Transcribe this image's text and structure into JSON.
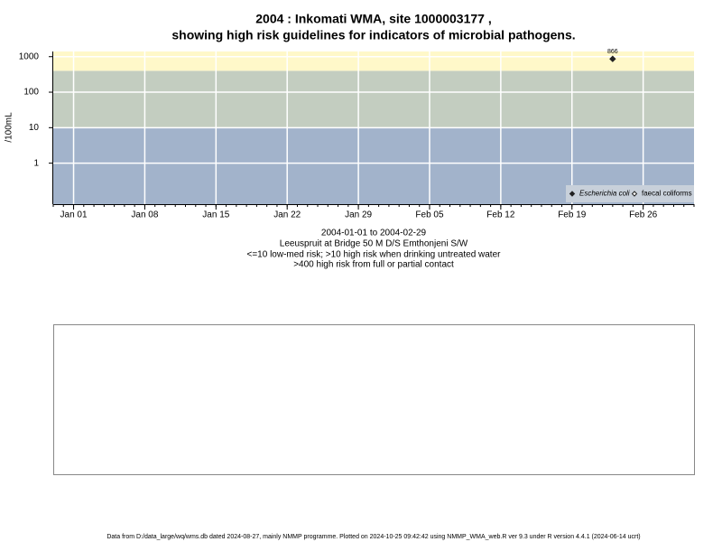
{
  "chart_data": {
    "type": "scatter",
    "title": "2004 : Inkomati WMA, site 1000003177 ,",
    "subtitle": "showing high risk guidelines for indicators of microbial pathogens.",
    "y_label": "/100mL",
    "notes": [
      "2004-01-01 to 2004-02-29",
      "Leeuspruit at Bridge 50 M D/S Emthonjeni S/W",
      "<=10 low-med risk; >10 high risk when drinking untreated water",
      ">400 high risk from full or partial contact"
    ],
    "footer": "Data from D:/data_large/wq/wms.db dated 2024-08-27, mainly NMMP programme. Plotted on 2024-10-25 09:42:42 using NMMP_WMA_web.R ver 9.3 under R version 4.4.1 (2024-06-14 ucrt)",
    "x": [
      "2004-02-23"
    ],
    "series": [
      {
        "name": "Escherichia coli",
        "color": "#222222",
        "marker": "filled",
        "values": [
          866
        ]
      },
      {
        "name": "faecal coliforms",
        "color": "#222222",
        "marker": "open",
        "values": [
          null
        ]
      }
    ],
    "xlim": [
      "2003-12-30",
      "2004-03-02"
    ],
    "xticks": [
      {
        "value": "2004-01-01",
        "label": "Jan 01"
      },
      {
        "value": "2004-01-08",
        "label": "Jan 08"
      },
      {
        "value": "2004-01-15",
        "label": "Jan 15"
      },
      {
        "value": "2004-01-22",
        "label": "Jan 22"
      },
      {
        "value": "2004-01-29",
        "label": "Jan 29"
      },
      {
        "value": "2004-02-05",
        "label": "Feb 05"
      },
      {
        "value": "2004-02-12",
        "label": "Feb 12"
      },
      {
        "value": "2004-02-19",
        "label": "Feb 19"
      },
      {
        "value": "2004-02-26",
        "label": "Feb 26"
      }
    ],
    "ylim": [
      0.07,
      1400
    ],
    "yticks": [
      1,
      10,
      100,
      1000
    ],
    "log_y": true,
    "grid": true,
    "legend": "bottom-right",
    "bands": [
      {
        "to": 10,
        "color": "#a2b3cb"
      },
      {
        "from": 10,
        "to": 400,
        "color": "#c3cdc0"
      },
      {
        "from": 400,
        "color": "#fff8c9"
      }
    ]
  }
}
